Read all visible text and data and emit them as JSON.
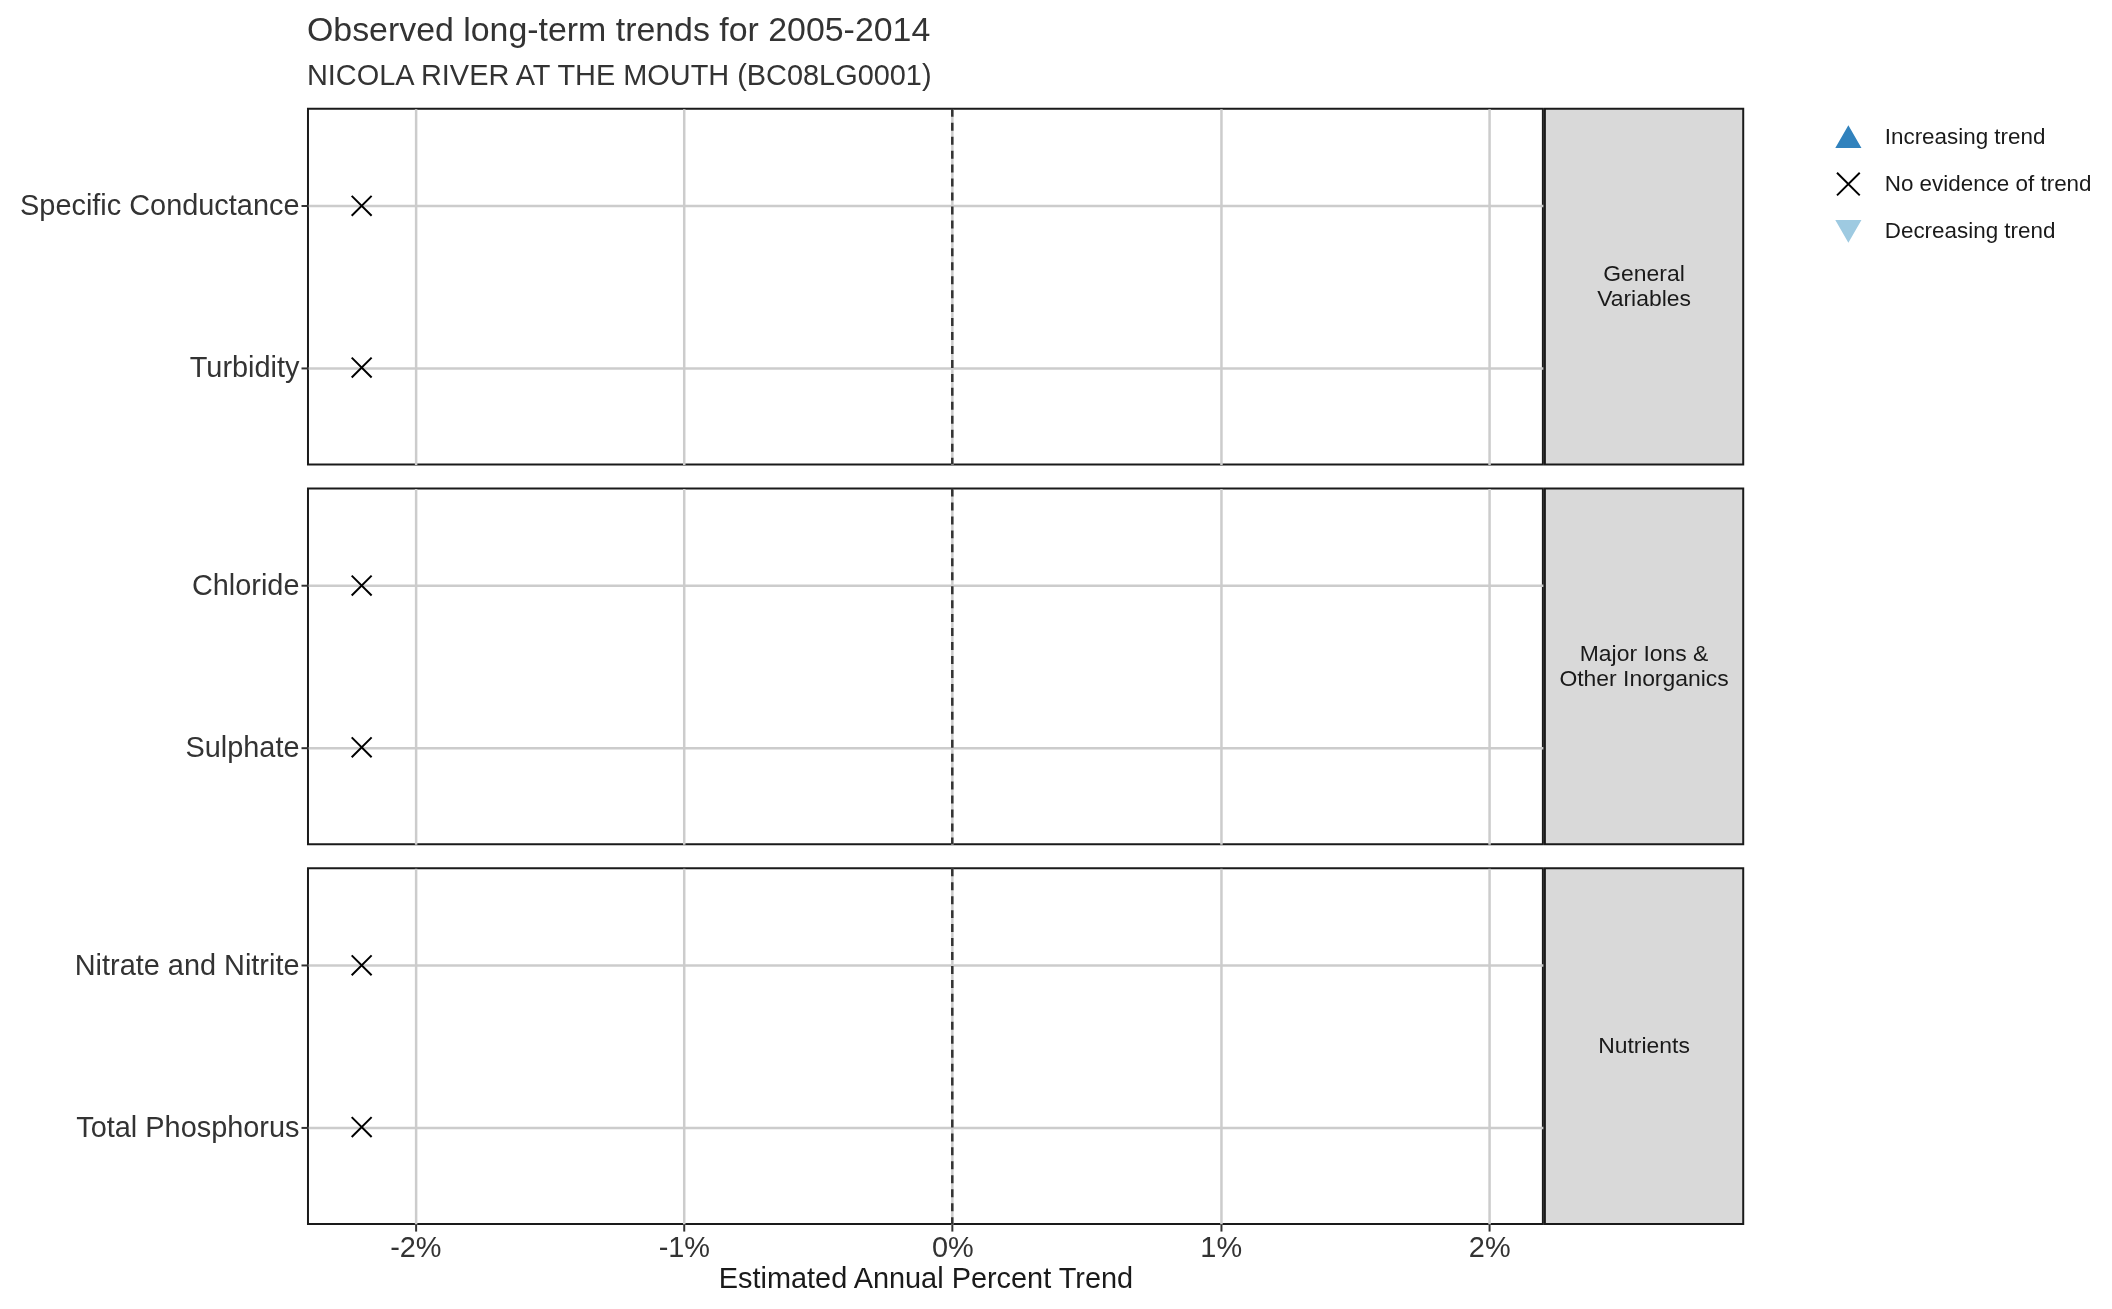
{
  "chart_data": [
    {
      "type": "scatter",
      "title": "Observed long-term trends for 2005-2014",
      "subtitle": "NICOLA RIVER AT THE MOUTH (BC08LG0001)",
      "orientation": "horizontal",
      "categories": [
        "Specific Conductance",
        "Turbidity"
      ],
      "series": [
        {
          "name": "Increasing trend",
          "color": "#3182bd",
          "marker": "triangle",
          "values": [
            null,
            null
          ]
        },
        {
          "name": "No evidence of trend",
          "color": "#000000",
          "marker": "cross",
          "values": [
            -2.2,
            -2.2
          ]
        },
        {
          "name": "Decreasing trend",
          "color": "#9ecae1",
          "marker": "triangle-down",
          "values": [
            null,
            null
          ]
        }
      ],
      "xlim": [
        -2.4,
        2.2
      ],
      "xticks": [
        {
          "value": -2,
          "label": null
        },
        {
          "value": -1,
          "label": null
        },
        {
          "value": 0,
          "label": null
        },
        {
          "value": 1,
          "label": null
        },
        {
          "value": 2,
          "label": null
        }
      ],
      "ref_lines": [
        {
          "axis": "x",
          "value": 0,
          "color": "#333333",
          "line_style": "dashed"
        }
      ],
      "annotations": [
        "General\nVariables"
      ],
      "grid": true,
      "legend": "top right",
      "tick_labels": "y"
    },
    {
      "type": "scatter",
      "orientation": "horizontal",
      "categories": [
        "Chloride",
        "Sulphate"
      ],
      "values": [
        -2.2,
        -2.2
      ],
      "color": "#000000",
      "marker": "cross",
      "xlim": [
        -2.4,
        2.2
      ],
      "xticks": [
        {
          "value": -2,
          "label": null
        },
        {
          "value": -1,
          "label": null
        },
        {
          "value": 0,
          "label": null
        },
        {
          "value": 1,
          "label": null
        },
        {
          "value": 2,
          "label": null
        }
      ],
      "ref_lines": [
        {
          "axis": "x",
          "value": 0,
          "color": "#333333",
          "line_style": "dashed"
        }
      ],
      "annotations": [
        "Major Ions &\nOther Inorganics"
      ],
      "grid": true,
      "tick_labels": "y"
    },
    {
      "type": "scatter",
      "orientation": "horizontal",
      "xlabel": "Estimated Annual Percent Trend",
      "categories": [
        "Nitrate and Nitrite",
        "Total Phosphorus"
      ],
      "values": [
        -2.2,
        -2.2
      ],
      "color": "#000000",
      "marker": "cross",
      "xlim": [
        -2.4,
        2.2
      ],
      "xticks": [
        {
          "value": -2,
          "label": "-2%"
        },
        {
          "value": -1,
          "label": "-1%"
        },
        {
          "value": 0,
          "label": "0%"
        },
        {
          "value": 1,
          "label": "1%"
        },
        {
          "value": 2,
          "label": "2%"
        }
      ],
      "ref_lines": [
        {
          "axis": "x",
          "value": 0,
          "color": "#333333",
          "line_style": "dashed"
        }
      ],
      "annotations": [
        "Nutrients"
      ],
      "grid": true
    }
  ]
}
